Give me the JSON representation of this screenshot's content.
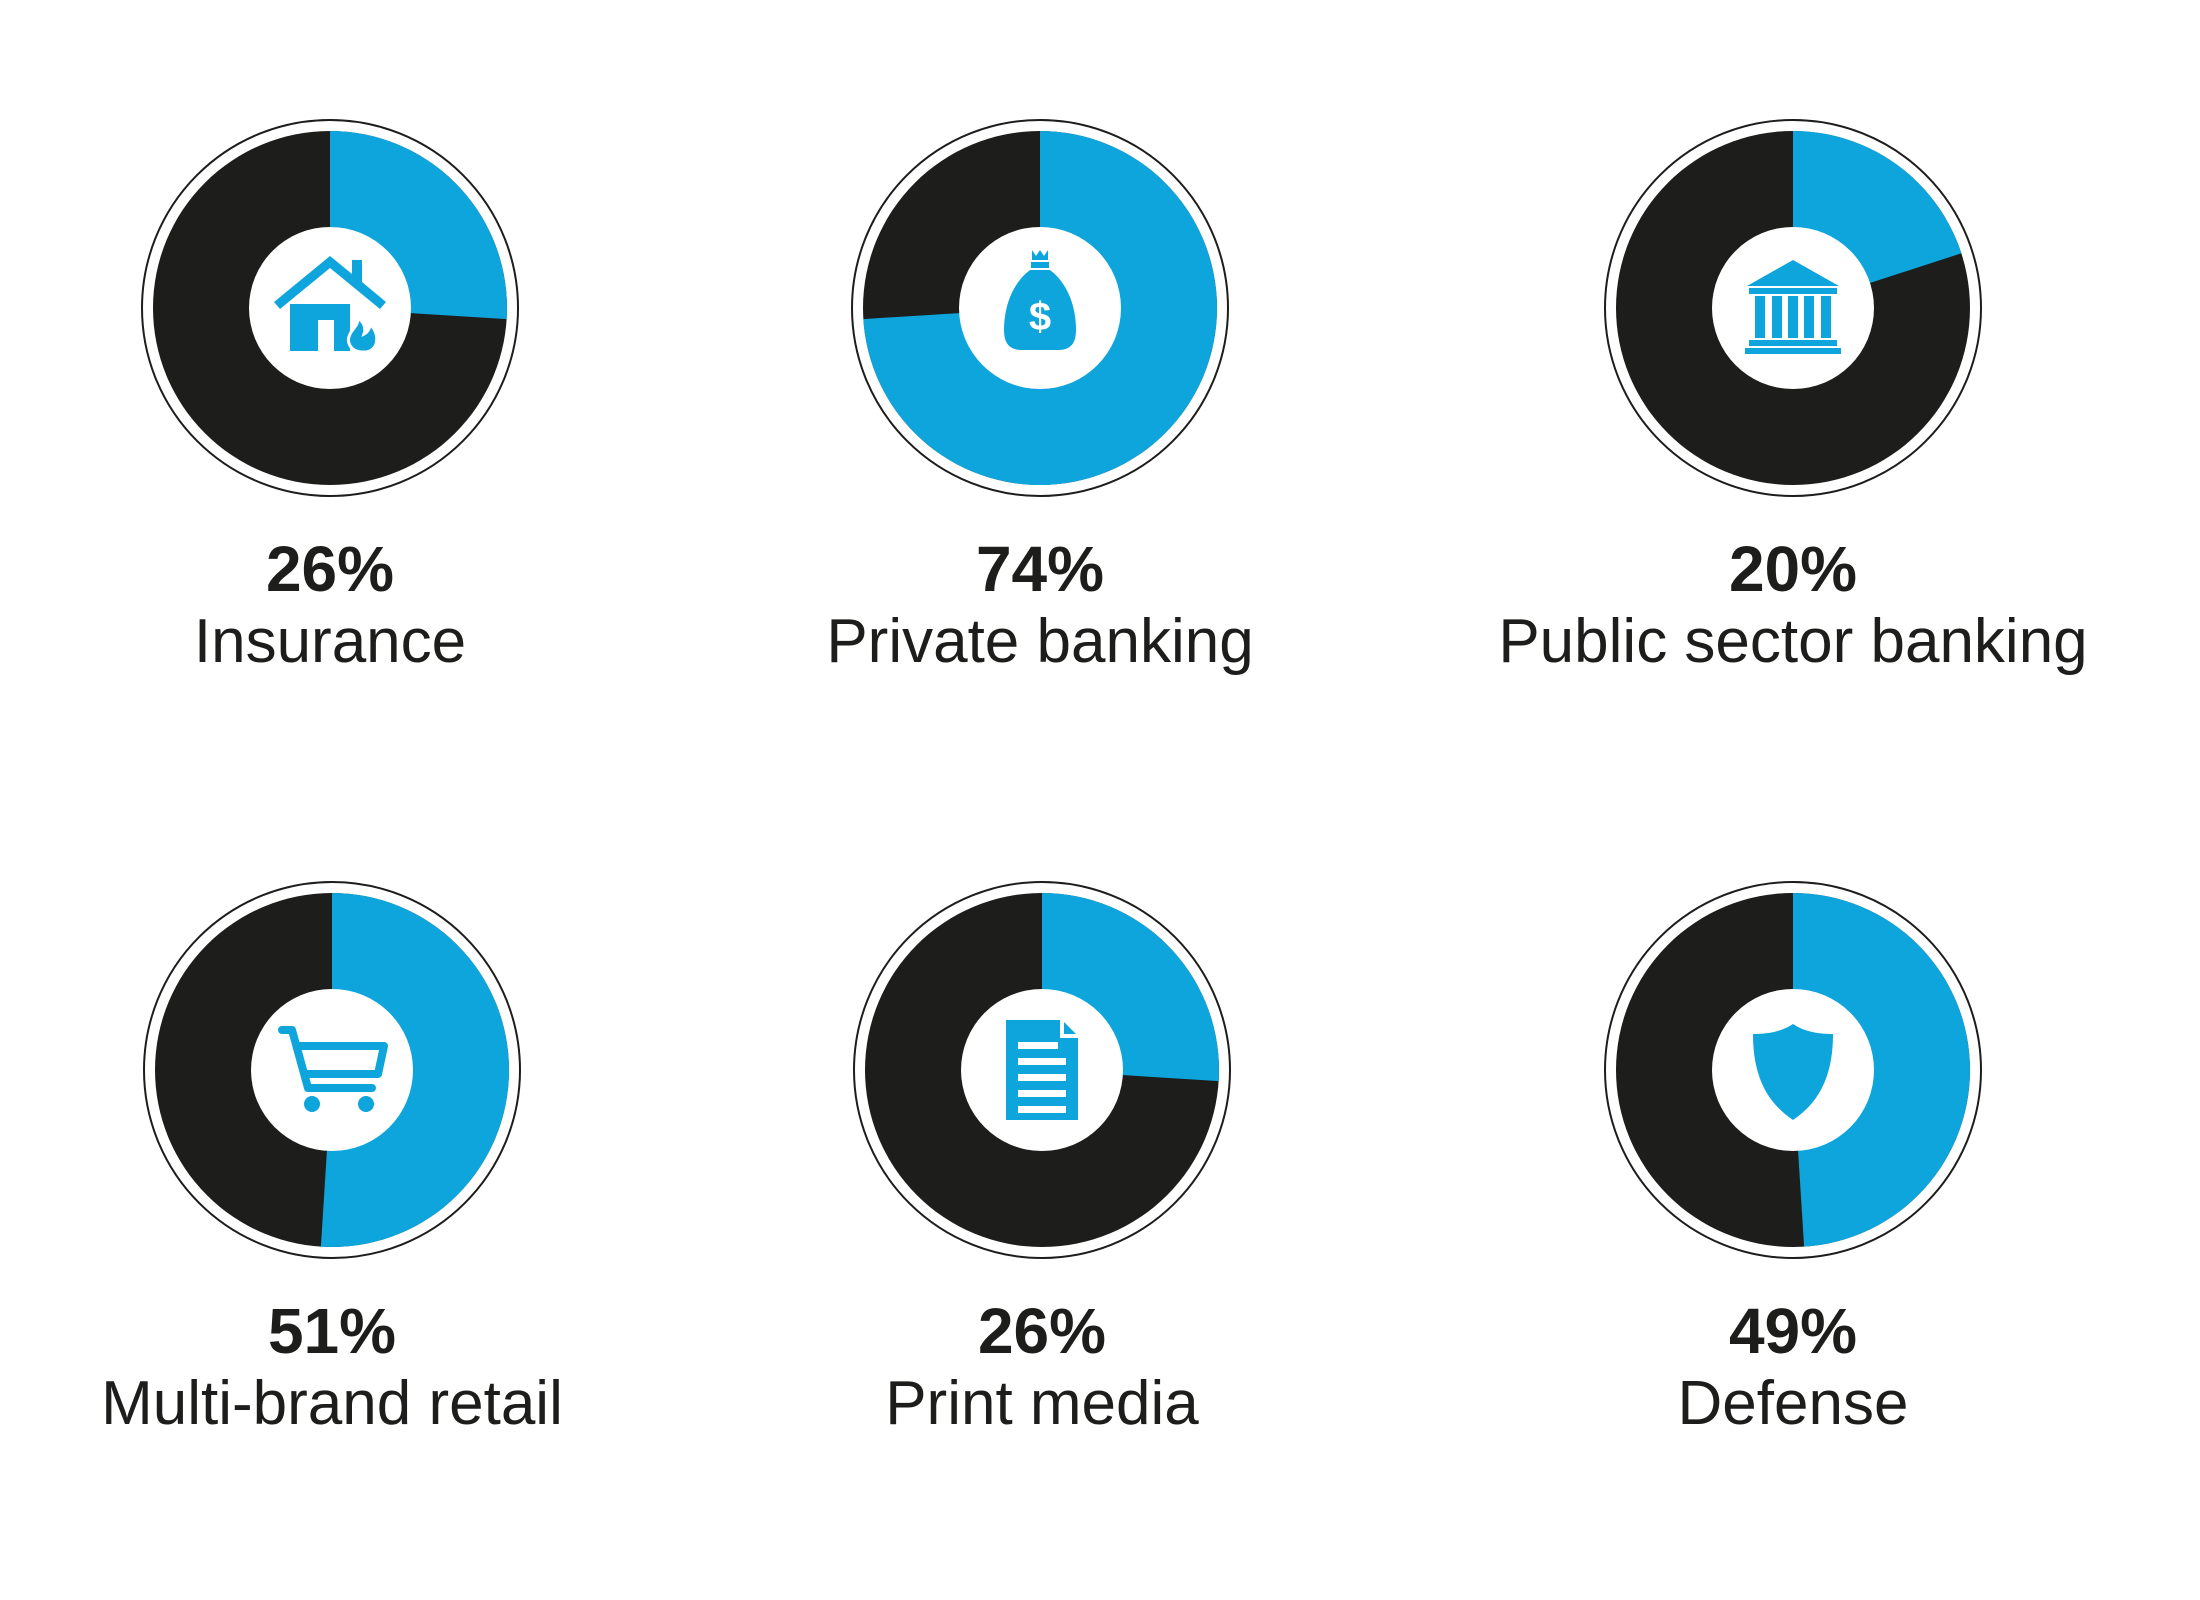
{
  "colors": {
    "accent": "#0ea5dc",
    "dark": "#1d1d1b",
    "ring": "#1d1d1b",
    "hub": "#ffffff"
  },
  "chart_data": [
    {
      "type": "pie",
      "value": 26,
      "percent_label": "26%",
      "category": "Insurance",
      "icon": "house-fire-icon"
    },
    {
      "type": "pie",
      "value": 74,
      "percent_label": "74%",
      "category": "Private banking",
      "icon": "money-bag-icon"
    },
    {
      "type": "pie",
      "value": 20,
      "percent_label": "20%",
      "category": "Public sector banking",
      "icon": "bank-building-icon"
    },
    {
      "type": "pie",
      "value": 51,
      "percent_label": "51%",
      "category": "Multi-brand retail",
      "icon": "shopping-cart-icon"
    },
    {
      "type": "pie",
      "value": 26,
      "percent_label": "26%",
      "category": "Print media",
      "icon": "document-icon"
    },
    {
      "type": "pie",
      "value": 49,
      "percent_label": "49%",
      "category": "Defense",
      "icon": "shield-icon"
    }
  ]
}
